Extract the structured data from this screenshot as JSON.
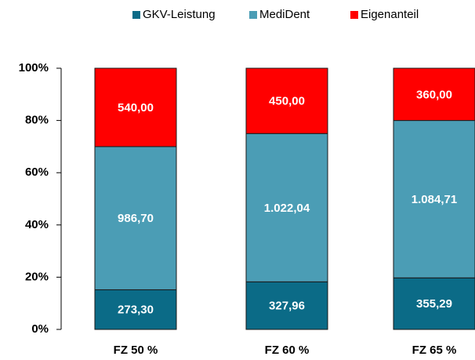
{
  "chart_data": {
    "type": "bar",
    "stacking": "percent",
    "categories": [
      "FZ 50 %",
      "FZ 60 %",
      "FZ 65 %"
    ],
    "series": [
      {
        "name": "GKV-Leistung",
        "color": "#0b6b87",
        "values": [
          273.3,
          327.96,
          355.29
        ],
        "value_labels": [
          "273,30",
          "327,96",
          "355,29"
        ]
      },
      {
        "name": "MediDent",
        "color": "#4b9db5",
        "values": [
          986.7,
          1022.04,
          1084.71
        ],
        "value_labels": [
          "986,70",
          "1.022,04",
          "1.084,71"
        ]
      },
      {
        "name": "Eigenanteil",
        "color": "#ff0000",
        "values": [
          540,
          450,
          360
        ],
        "value_labels": [
          "540,00",
          "450,00",
          "360,00"
        ]
      }
    ],
    "ylim": [
      0,
      100
    ],
    "yticks": [
      {
        "value": 0,
        "label": "0%"
      },
      {
        "value": 20,
        "label": "20%"
      },
      {
        "value": 40,
        "label": "40%"
      },
      {
        "value": 60,
        "label": "60%"
      },
      {
        "value": 80,
        "label": "80%"
      },
      {
        "value": 100,
        "label": "100%"
      }
    ],
    "legend": "top"
  }
}
